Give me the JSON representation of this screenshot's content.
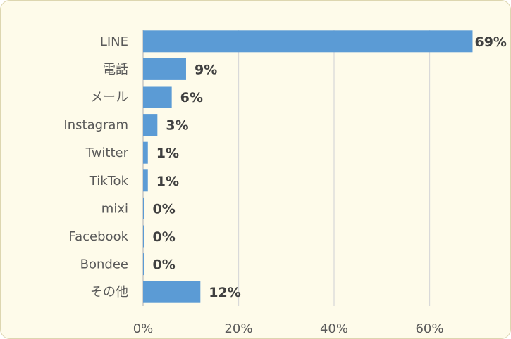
{
  "chart_data": {
    "type": "bar",
    "orientation": "horizontal",
    "title": "",
    "xlabel": "",
    "ylabel": "",
    "categories": [
      "LINE",
      "電話",
      "メール",
      "Instagram",
      "Twitter",
      "TikTok",
      "mixi",
      "Facebook",
      "Bondee",
      "その他"
    ],
    "values": [
      69,
      9,
      6,
      3,
      1,
      1,
      0,
      0,
      0,
      12
    ],
    "value_labels": [
      "69%",
      "9%",
      "6%",
      "3%",
      "1%",
      "1%",
      "0%",
      "0%",
      "0%",
      "12%"
    ],
    "value_unit": "%",
    "xlim": [
      0,
      80
    ],
    "x_ticks": [
      0,
      20,
      40,
      60
    ],
    "x_tick_labels": [
      "0%",
      "20%",
      "40%",
      "60%"
    ],
    "grid": "vertical",
    "legend": "none",
    "bar_color": "#5b9bd5",
    "background_color": "#fefbea"
  }
}
